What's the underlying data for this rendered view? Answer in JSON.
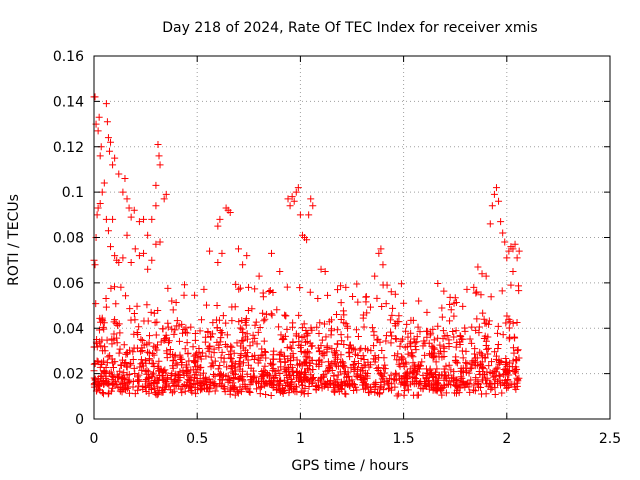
{
  "chart_data": {
    "type": "scatter",
    "title": "Day 218 of 2024, Rate Of TEC Index for receiver xmis",
    "xlabel": "GPS time / hours",
    "ylabel": "ROTI / TECUs",
    "xlim": [
      0,
      2.5
    ],
    "ylim": [
      0,
      0.16
    ],
    "x_ticks": [
      "0",
      "0.5",
      "1",
      "1.5",
      "2",
      "2.5"
    ],
    "y_ticks": [
      "0",
      "0.02",
      "0.04",
      "0.06",
      "0.08",
      "0.1",
      "0.12",
      "0.14",
      "0.16"
    ],
    "x_tick_values": [
      0,
      0.5,
      1,
      1.5,
      2,
      2.5
    ],
    "y_tick_values": [
      0,
      0.02,
      0.04,
      0.06,
      0.08,
      0.1,
      0.12,
      0.14,
      0.16
    ],
    "grid": true,
    "marker": "+",
    "marker_color": "#ff0000",
    "series": [
      {
        "points": [
          [
            0.0,
            0.142
          ],
          [
            0.005,
            0.142
          ],
          [
            0.01,
            0.13
          ],
          [
            0.02,
            0.127
          ],
          [
            0.025,
            0.133
          ],
          [
            0.03,
            0.116
          ],
          [
            0.035,
            0.12
          ],
          [
            0.06,
            0.139
          ],
          [
            0.065,
            0.131
          ],
          [
            0.07,
            0.124
          ],
          [
            0.075,
            0.118
          ],
          [
            0.08,
            0.122
          ],
          [
            0.09,
            0.112
          ],
          [
            0.1,
            0.115
          ],
          [
            0.12,
            0.108
          ],
          [
            0.14,
            0.1
          ],
          [
            0.15,
            0.106
          ],
          [
            0.16,
            0.097
          ],
          [
            0.17,
            0.093
          ],
          [
            0.18,
            0.089
          ],
          [
            0.195,
            0.092
          ],
          [
            0.22,
            0.087
          ],
          [
            0.24,
            0.088
          ],
          [
            0.26,
            0.081
          ],
          [
            0.28,
            0.088
          ],
          [
            0.3,
            0.094
          ],
          [
            0.31,
            0.121
          ],
          [
            0.315,
            0.116
          ],
          [
            0.32,
            0.112
          ],
          [
            0.3,
            0.103
          ],
          [
            0.34,
            0.097
          ],
          [
            0.35,
            0.099
          ],
          [
            0.0,
            0.07
          ],
          [
            0.005,
            0.068
          ],
          [
            0.01,
            0.08
          ],
          [
            0.015,
            0.09
          ],
          [
            0.02,
            0.093
          ],
          [
            0.03,
            0.095
          ],
          [
            0.04,
            0.1
          ],
          [
            0.05,
            0.104
          ],
          [
            0.06,
            0.088
          ],
          [
            0.07,
            0.083
          ],
          [
            0.08,
            0.076
          ],
          [
            0.09,
            0.088
          ],
          [
            0.1,
            0.072
          ],
          [
            0.11,
            0.07
          ],
          [
            0.12,
            0.069
          ],
          [
            0.14,
            0.071
          ],
          [
            0.16,
            0.081
          ],
          [
            0.18,
            0.069
          ],
          [
            0.2,
            0.075
          ],
          [
            0.22,
            0.072
          ],
          [
            0.24,
            0.073
          ],
          [
            0.26,
            0.066
          ],
          [
            0.28,
            0.07
          ],
          [
            0.3,
            0.077
          ],
          [
            0.32,
            0.078
          ],
          [
            0.56,
            0.074
          ],
          [
            0.6,
            0.069
          ],
          [
            0.62,
            0.073
          ],
          [
            0.64,
            0.093
          ],
          [
            0.65,
            0.092
          ],
          [
            0.66,
            0.091
          ],
          [
            0.61,
            0.088
          ],
          [
            0.6,
            0.085
          ],
          [
            0.7,
            0.075
          ],
          [
            0.72,
            0.068
          ],
          [
            0.74,
            0.072
          ],
          [
            0.8,
            0.063
          ],
          [
            0.86,
            0.073
          ],
          [
            0.9,
            0.065
          ],
          [
            0.94,
            0.097
          ],
          [
            0.95,
            0.094
          ],
          [
            0.96,
            0.098
          ],
          [
            0.97,
            0.096
          ],
          [
            0.98,
            0.1
          ],
          [
            0.99,
            0.102
          ],
          [
            1.0,
            0.09
          ],
          [
            1.01,
            0.081
          ],
          [
            1.02,
            0.08
          ],
          [
            1.03,
            0.079
          ],
          [
            1.05,
            0.097
          ],
          [
            1.06,
            0.094
          ],
          [
            1.04,
            0.09
          ],
          [
            1.1,
            0.066
          ],
          [
            1.12,
            0.065
          ],
          [
            1.18,
            0.057
          ],
          [
            1.22,
            0.058
          ],
          [
            1.38,
            0.073
          ],
          [
            1.39,
            0.075
          ],
          [
            1.4,
            0.068
          ],
          [
            1.36,
            0.063
          ],
          [
            1.42,
            0.059
          ],
          [
            1.46,
            0.055
          ],
          [
            1.5,
            0.051
          ],
          [
            1.84,
            0.058
          ],
          [
            1.86,
            0.067
          ],
          [
            1.88,
            0.064
          ],
          [
            1.9,
            0.063
          ],
          [
            1.92,
            0.086
          ],
          [
            1.93,
            0.094
          ],
          [
            1.94,
            0.099
          ],
          [
            1.95,
            0.102
          ],
          [
            1.96,
            0.096
          ],
          [
            1.97,
            0.087
          ],
          [
            1.98,
            0.082
          ],
          [
            1.99,
            0.078
          ],
          [
            2.0,
            0.071
          ],
          [
            2.01,
            0.074
          ],
          [
            2.02,
            0.076
          ],
          [
            2.03,
            0.075
          ],
          [
            2.04,
            0.077
          ],
          [
            2.05,
            0.071
          ],
          [
            2.06,
            0.074
          ],
          [
            2.03,
            0.065
          ],
          [
            2.02,
            0.059
          ]
        ]
      }
    ],
    "dense_band": {
      "x_range": [
        0.0,
        2.06
      ],
      "y_base": [
        0.01,
        0.04
      ],
      "y_spread_to": 0.06,
      "count": 1700
    }
  }
}
